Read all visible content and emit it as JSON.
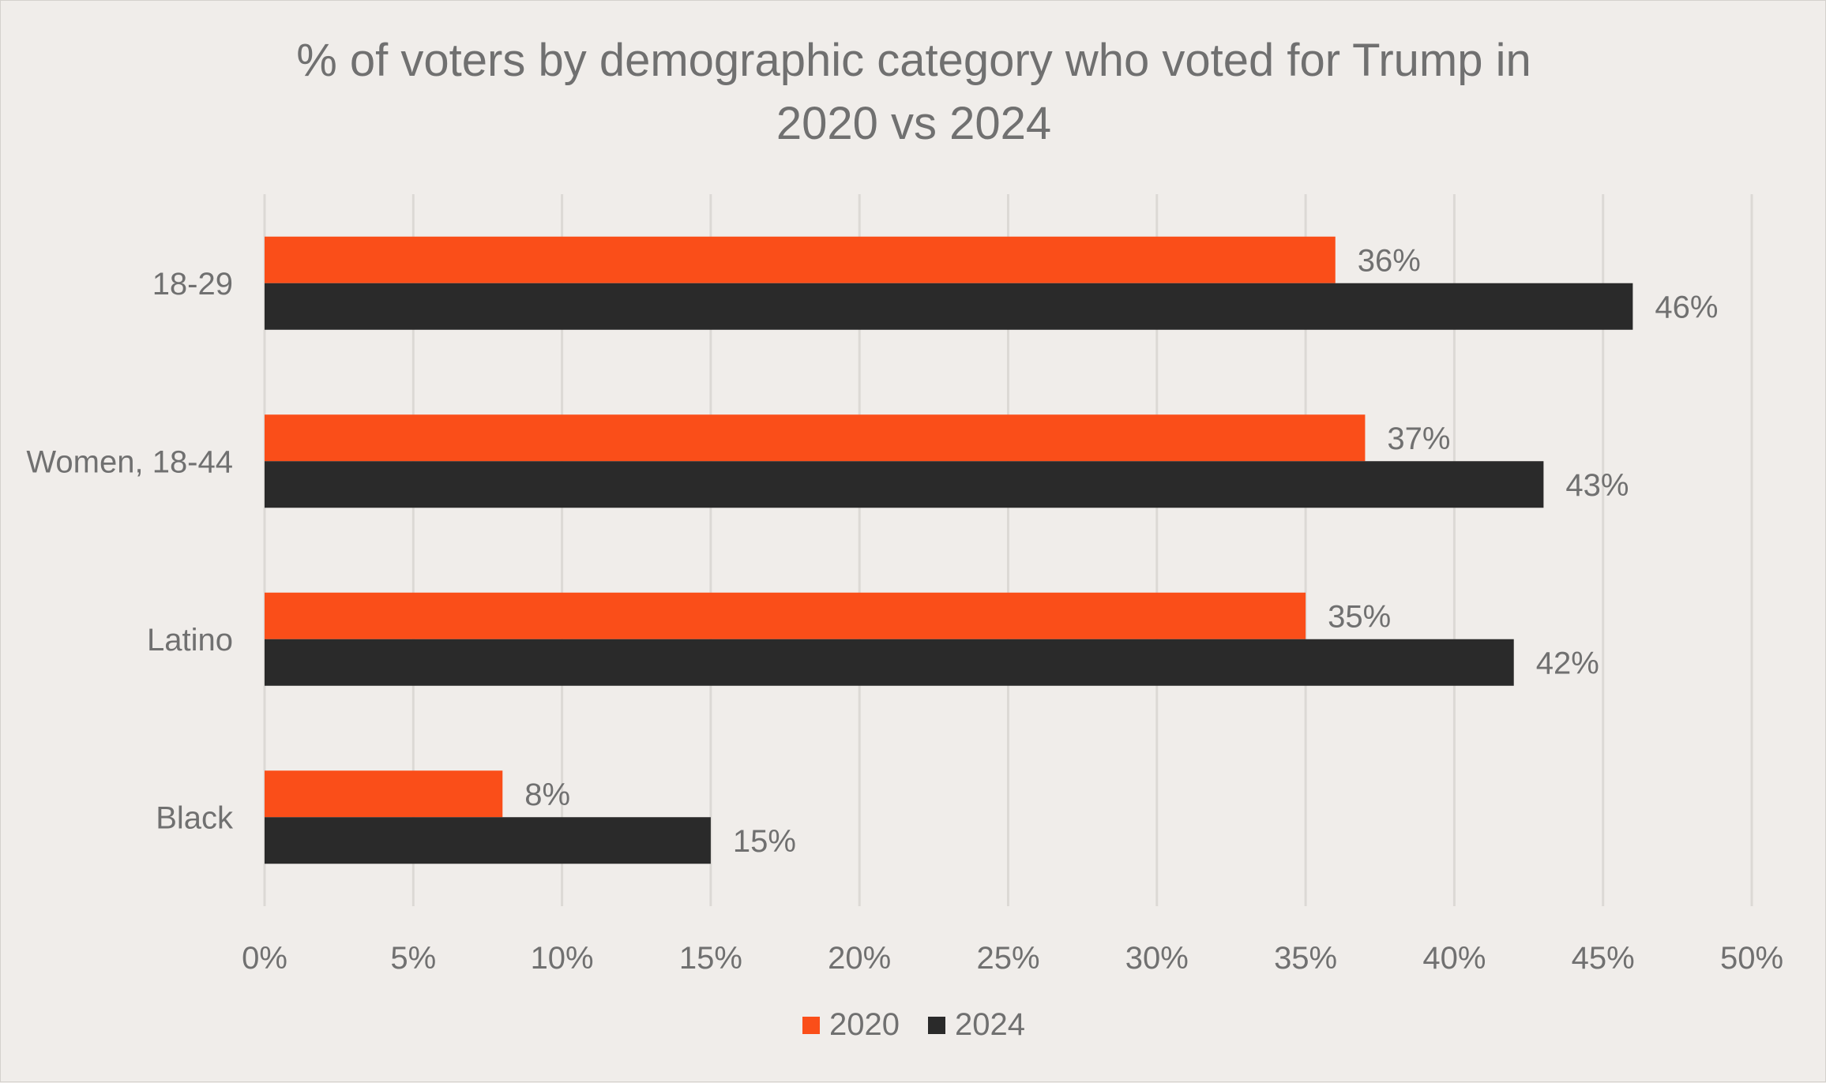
{
  "chart_data": {
    "type": "bar",
    "orientation": "horizontal",
    "title": "% of voters by demographic category who voted for Trump in\n2020 vs 2024",
    "categories": [
      "18-29",
      "Women, 18-44",
      "Latino",
      "Black"
    ],
    "series": [
      {
        "name": "2020",
        "color": "#fa4e19",
        "values": [
          36,
          37,
          35,
          8
        ],
        "labels": [
          "36%",
          "37%",
          "35%",
          "8%"
        ]
      },
      {
        "name": "2024",
        "color": "#2a2a2a",
        "values": [
          46,
          43,
          42,
          15
        ],
        "labels": [
          "46%",
          "43%",
          "42%",
          "15%"
        ]
      }
    ],
    "xlim": [
      0,
      50
    ],
    "xticks": [
      "0%",
      "5%",
      "10%",
      "15%",
      "20%",
      "25%",
      "30%",
      "35%",
      "40%",
      "45%",
      "50%"
    ],
    "xlabel": "",
    "ylabel": "",
    "grid": "vertical",
    "legend": "bottom-center"
  }
}
